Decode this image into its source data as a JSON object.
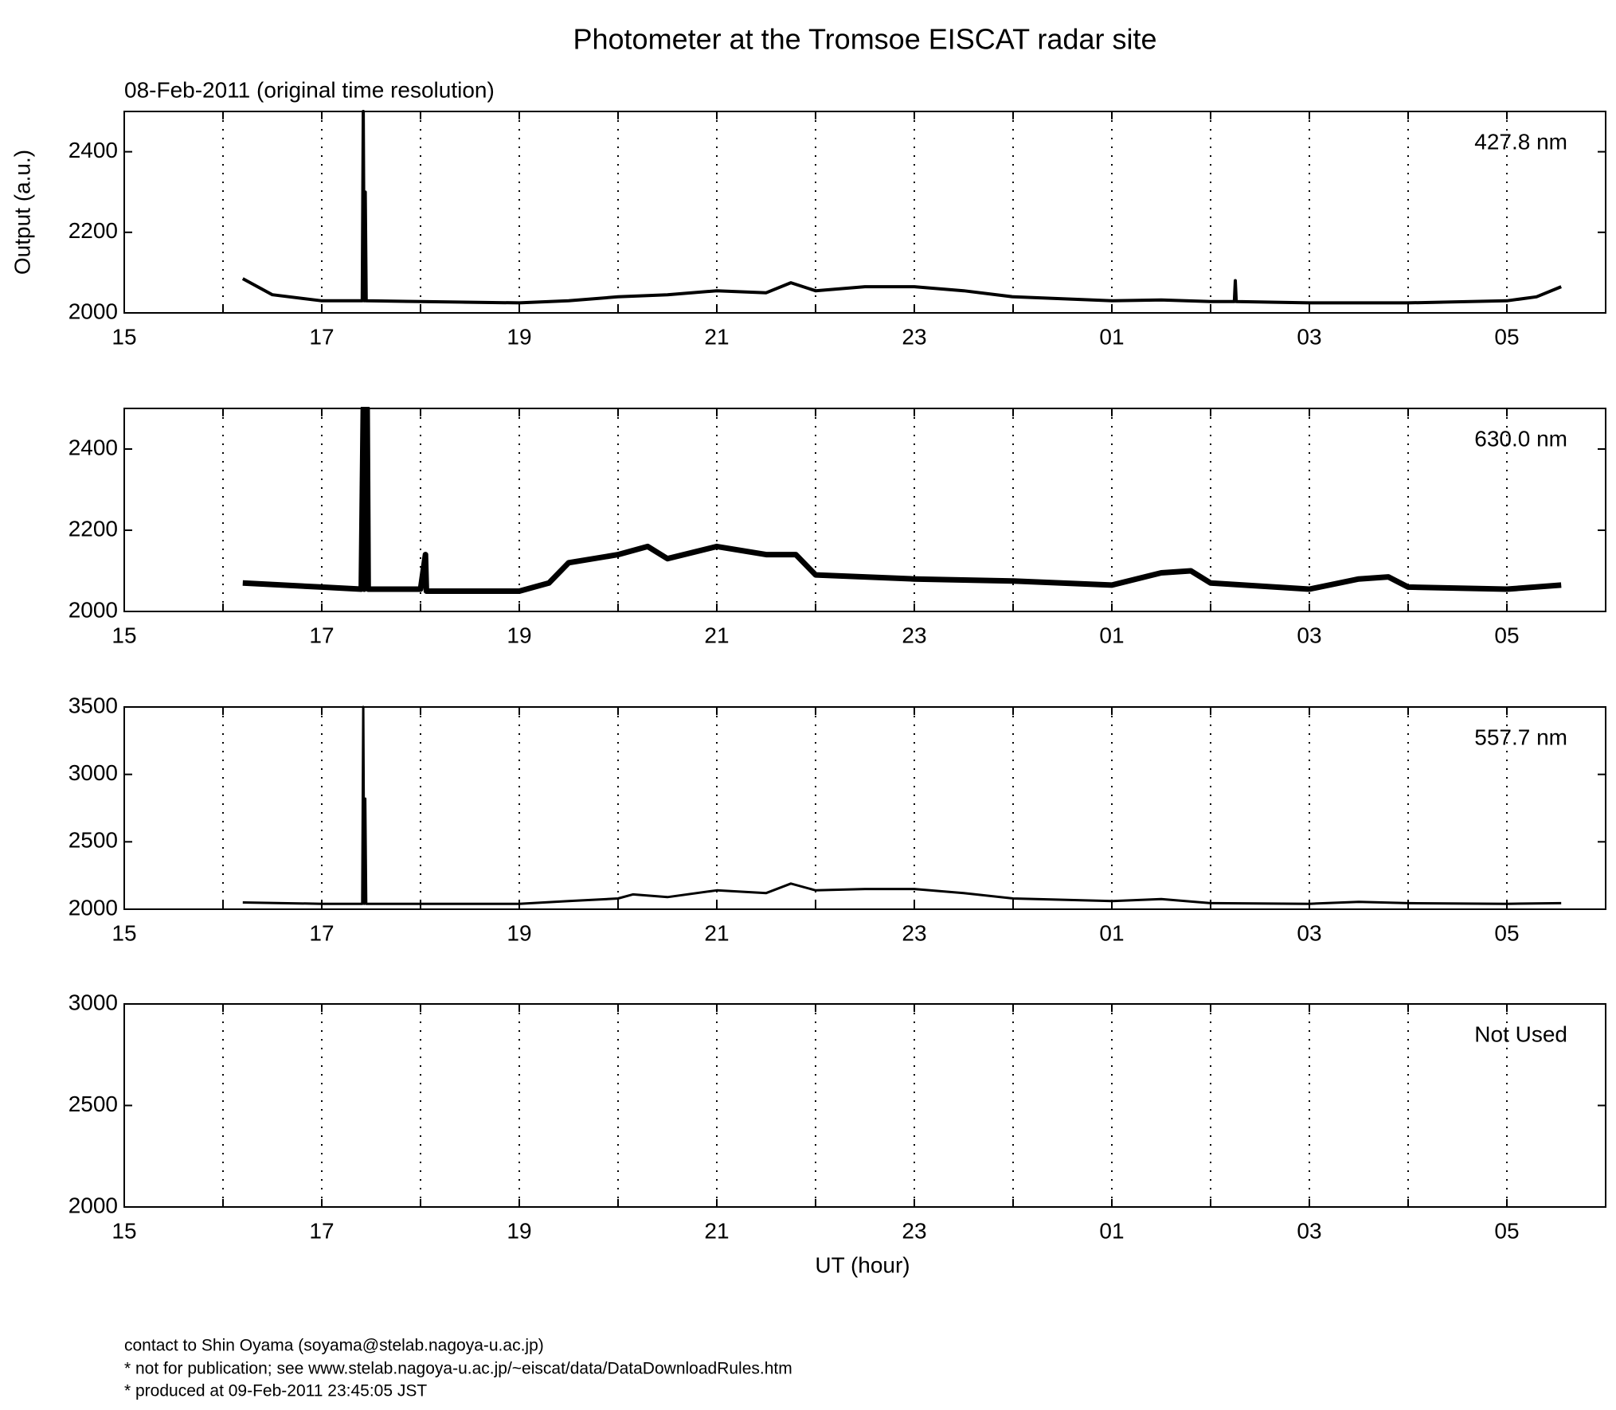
{
  "figure": {
    "title": "Photometer at the Tromsoe EISCAT radar site",
    "subtitle": "08-Feb-2011 (original time resolution)",
    "notes": [
      "contact to Shin Oyama (soyama@stelab.nagoya-u.ac.jp)",
      "* not for publication; see www.stelab.nagoya-u.ac.jp/~eiscat/data/DataDownloadRules.htm",
      "* produced at 09-Feb-2011 23:45:05 JST"
    ]
  },
  "chart_data": [
    {
      "type": "line",
      "ylabel": "Output (a.u.)",
      "xlim": [
        15,
        30
      ],
      "xticks": [
        15,
        17,
        19,
        21,
        23,
        {
          "value": 25,
          "label": "01"
        },
        {
          "value": 27,
          "label": "03"
        },
        {
          "value": 29,
          "label": "05"
        }
      ],
      "xminorticks": [
        16,
        18,
        20,
        22,
        24,
        26,
        28
      ],
      "grid": true,
      "ylim": [
        2000,
        2500
      ],
      "yticks": [
        2000,
        2200,
        2400
      ],
      "series": [
        {
          "name": "427.8 nm",
          "color": "#000000",
          "width": 4,
          "x": [
            16.2,
            16.5,
            17,
            17.4,
            17.41,
            17.42,
            17.43,
            17.44,
            17.45,
            18,
            19,
            19.5,
            20,
            20.5,
            21,
            21.5,
            21.75,
            22,
            22.5,
            23,
            23.5,
            24,
            25,
            25.5,
            26,
            26.24,
            26.25,
            26.26,
            27,
            28,
            29,
            29.3,
            29.55
          ],
          "values": [
            2085,
            2045,
            2030,
            2030,
            2030,
            2500,
            2030,
            2300,
            2030,
            2028,
            2025,
            2030,
            2040,
            2045,
            2055,
            2050,
            2075,
            2055,
            2065,
            2065,
            2055,
            2040,
            2030,
            2032,
            2028,
            2028,
            2080,
            2028,
            2025,
            2025,
            2030,
            2040,
            2065
          ]
        }
      ]
    },
    {
      "type": "line",
      "xlim": [
        15,
        30
      ],
      "xticks": [
        15,
        17,
        19,
        21,
        23,
        {
          "value": 25,
          "label": "01"
        },
        {
          "value": 27,
          "label": "03"
        },
        {
          "value": 29,
          "label": "05"
        }
      ],
      "xminorticks": [
        16,
        18,
        20,
        22,
        24,
        26,
        28
      ],
      "grid": true,
      "ylim": [
        2000,
        2500
      ],
      "yticks": [
        2000,
        2200,
        2400
      ],
      "series": [
        {
          "name": "630.0 nm",
          "color": "#000000",
          "width": 7,
          "x": [
            16.2,
            17,
            17.4,
            17.42,
            17.43,
            17.46,
            17.47,
            18,
            18.05,
            18.06,
            19,
            19.3,
            19.5,
            20,
            20.3,
            20.5,
            21,
            21.5,
            21.8,
            22,
            23,
            24,
            25,
            25.5,
            25.8,
            26,
            27,
            27.5,
            27.8,
            28,
            29,
            29.55
          ],
          "values": [
            2070,
            2060,
            2055,
            2500,
            2055,
            2500,
            2055,
            2055,
            2140,
            2050,
            2050,
            2070,
            2120,
            2140,
            2160,
            2130,
            2160,
            2140,
            2140,
            2090,
            2080,
            2075,
            2065,
            2095,
            2100,
            2070,
            2055,
            2080,
            2085,
            2060,
            2055,
            2065
          ]
        }
      ]
    },
    {
      "type": "line",
      "xlim": [
        15,
        30
      ],
      "xticks": [
        15,
        17,
        19,
        21,
        23,
        {
          "value": 25,
          "label": "01"
        },
        {
          "value": 27,
          "label": "03"
        },
        {
          "value": 29,
          "label": "05"
        }
      ],
      "xminorticks": [
        16,
        18,
        20,
        22,
        24,
        26,
        28
      ],
      "grid": true,
      "ylim": [
        2000,
        3500
      ],
      "yticks": [
        2000,
        2500,
        3000,
        3500
      ],
      "series": [
        {
          "name": "557.7 nm",
          "color": "#000000",
          "width": 3,
          "x": [
            16.2,
            17,
            17.41,
            17.42,
            17.43,
            17.44,
            17.45,
            17.46,
            18,
            19,
            19.5,
            20,
            20.15,
            20.5,
            21,
            21.5,
            21.75,
            22,
            22.5,
            23,
            23.5,
            24,
            25,
            25.5,
            26,
            27,
            27.5,
            28,
            29,
            29.55
          ],
          "values": [
            2050,
            2040,
            2040,
            3500,
            2040,
            2820,
            2040,
            2040,
            2040,
            2040,
            2060,
            2080,
            2110,
            2090,
            2140,
            2120,
            2190,
            2140,
            2150,
            2150,
            2120,
            2080,
            2060,
            2075,
            2045,
            2040,
            2055,
            2045,
            2040,
            2045
          ]
        }
      ]
    },
    {
      "type": "line",
      "xlabel": "UT (hour)",
      "xlim": [
        15,
        30
      ],
      "xticks": [
        15,
        17,
        19,
        21,
        23,
        {
          "value": 25,
          "label": "01"
        },
        {
          "value": 27,
          "label": "03"
        },
        {
          "value": 29,
          "label": "05"
        }
      ],
      "xminorticks": [
        16,
        18,
        20,
        22,
        24,
        26,
        28
      ],
      "grid": true,
      "ylim": [
        2000,
        3000
      ],
      "yticks": [
        2000,
        2500,
        3000
      ],
      "series": [
        {
          "name": "Not Used",
          "color": "#000000",
          "width": 3,
          "x": [],
          "values": []
        }
      ]
    }
  ]
}
